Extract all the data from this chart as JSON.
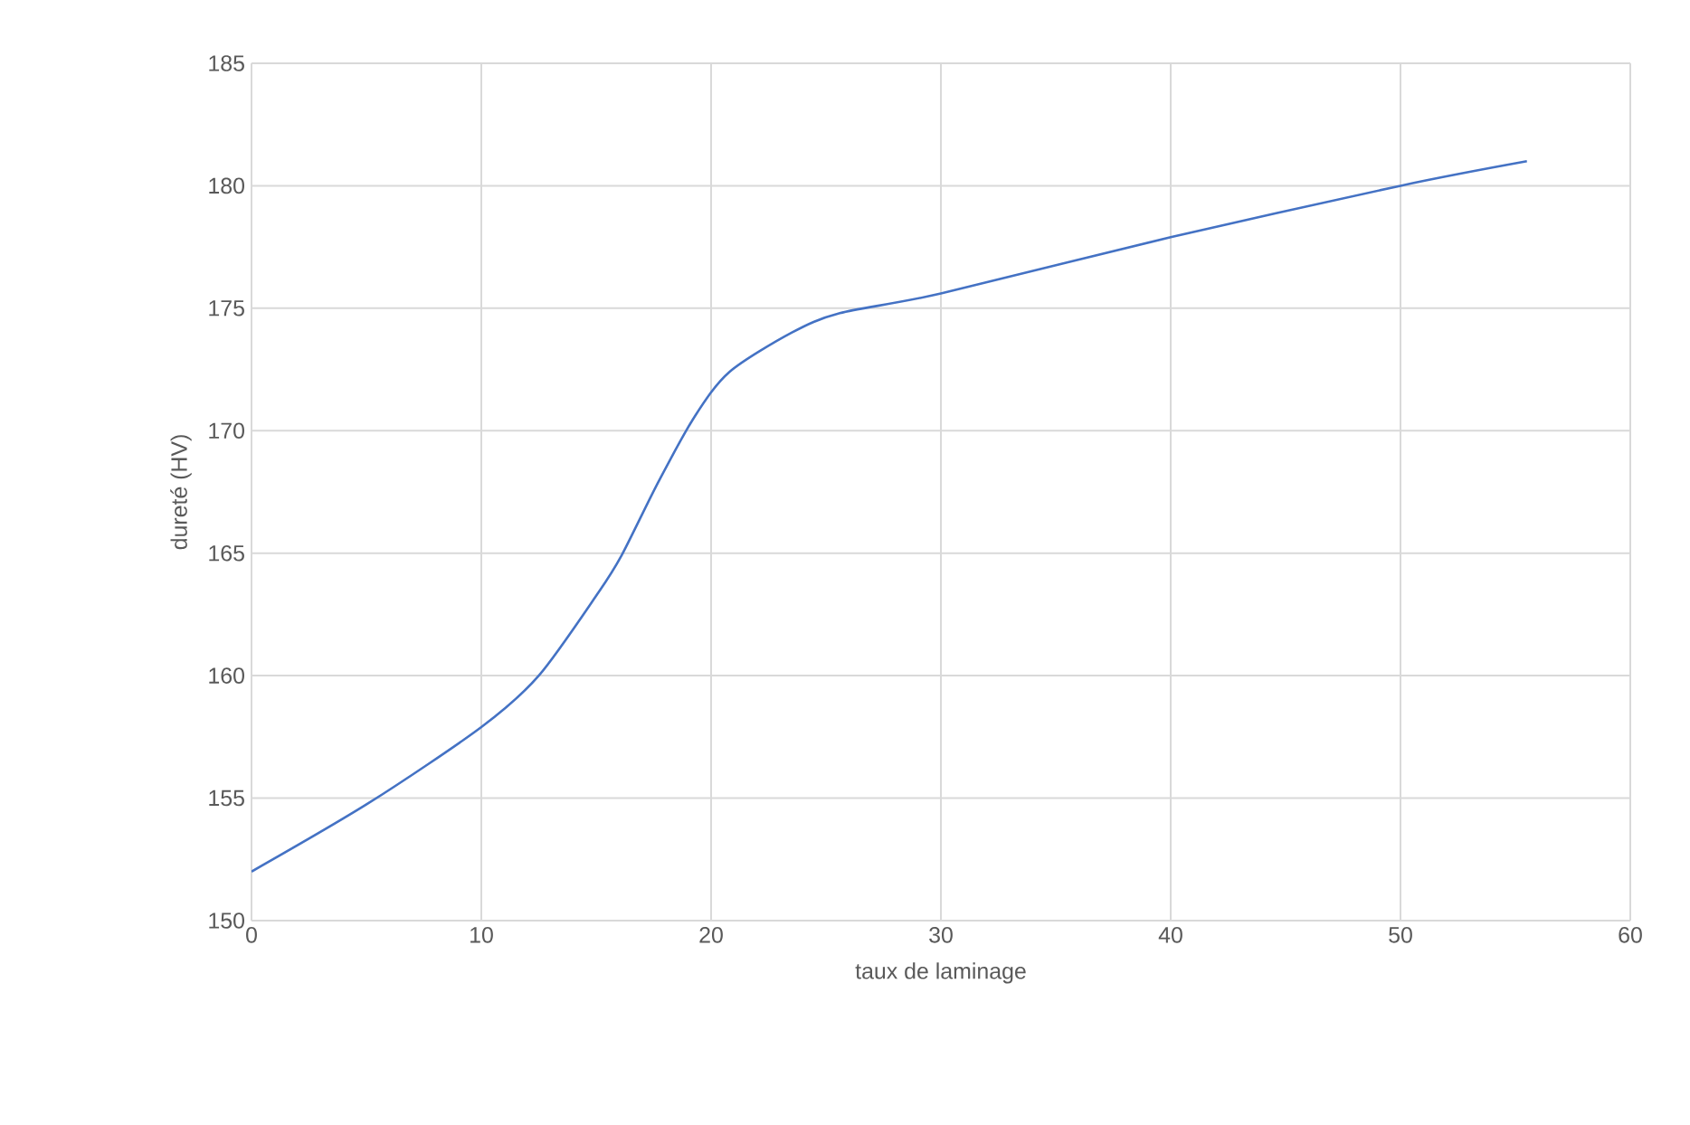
{
  "chart_data": {
    "type": "line",
    "xlabel": "taux de laminage",
    "ylabel": "dureté (HV)",
    "x": [
      0,
      5.1,
      10,
      12.5,
      15.1,
      16.1,
      17.7,
      19.3,
      20.8,
      23.5,
      25.6,
      30,
      40,
      50,
      55.5
    ],
    "series": [
      {
        "color": "#4472c4",
        "values": [
          152.0,
          154.8,
          157.9,
          160.0,
          163.4,
          164.9,
          167.9,
          170.6,
          172.4,
          174.0,
          174.8,
          175.6,
          177.9,
          180.0,
          181.0
        ]
      }
    ],
    "xlim": [
      0,
      60
    ],
    "xticks": [
      0,
      10,
      20,
      30,
      40,
      50,
      60
    ],
    "ylim": [
      150,
      185
    ],
    "yticks": [
      150,
      155,
      160,
      165,
      170,
      175,
      180,
      185
    ],
    "grid": true,
    "marker": "none",
    "line_style": "solid"
  }
}
